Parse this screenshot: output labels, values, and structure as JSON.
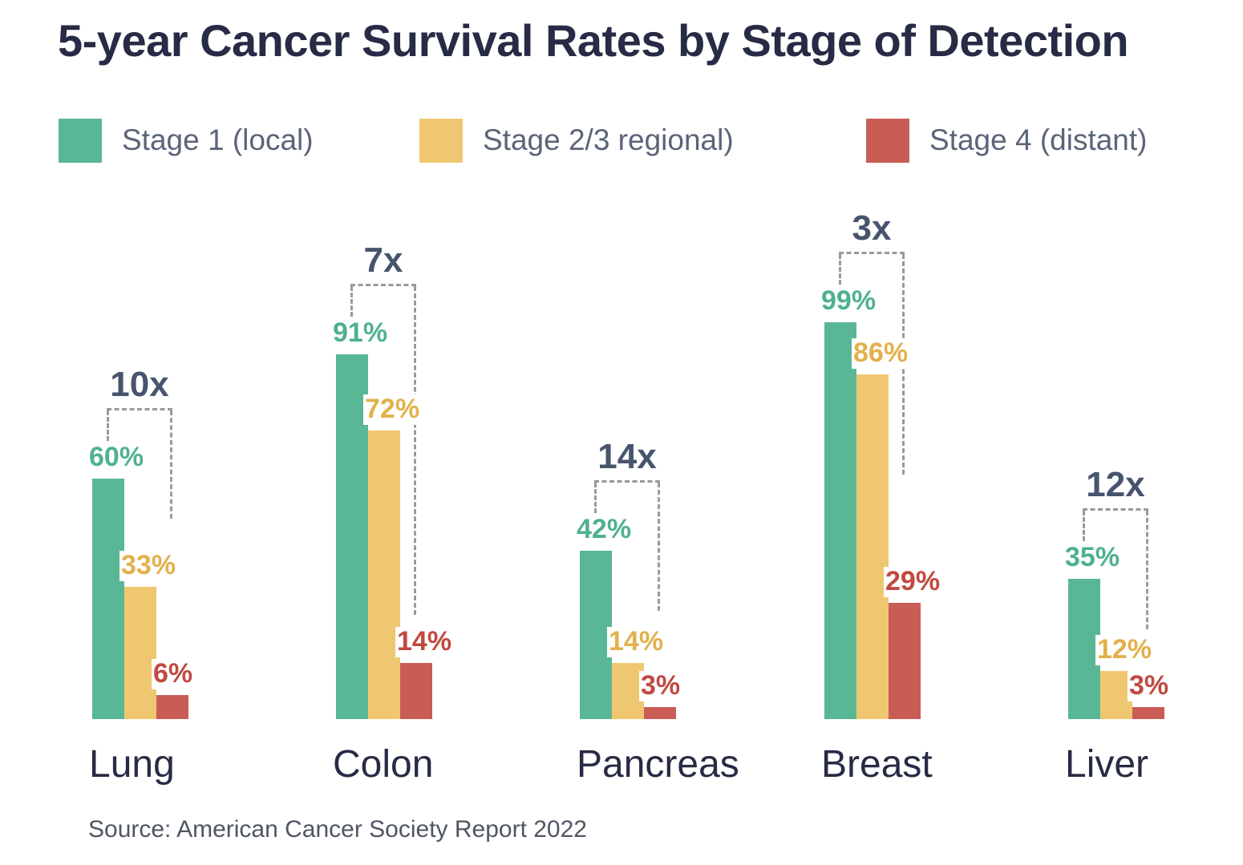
{
  "title": "5-year Cancer Survival Rates by Stage of Detection",
  "legend": [
    {
      "label": "Stage 1 (local)",
      "color": "#5AB795"
    },
    {
      "label": "Stage 2/3 regional)",
      "color": "#F0C771"
    },
    {
      "label": "Stage 4 (distant)",
      "color": "#C95D55"
    }
  ],
  "source": "Source: American Cancer Society Report 2022",
  "colors": {
    "title": "#272B45",
    "legend_text": "#5B6478",
    "source_text": "#4F5663",
    "annotation": "#48546E",
    "bracket": "#9A9A9A",
    "bars": [
      "#5AB795",
      "#F0C771",
      "#C95D55"
    ],
    "value_labels": [
      "#4FB090",
      "#E2B14C",
      "#C04940"
    ]
  },
  "chart_data": {
    "type": "bar",
    "title": "5-year Cancer Survival Rates by Stage of Detection",
    "categories": [
      "Lung",
      "Colon",
      "Pancreas",
      "Breast",
      "Liver"
    ],
    "series": [
      {
        "name": "Stage 1 (local)",
        "values": [
          60,
          91,
          42,
          99,
          35
        ]
      },
      {
        "name": "Stage 2/3 regional)",
        "values": [
          33,
          72,
          14,
          86,
          12
        ]
      },
      {
        "name": "Stage 4 (distant)",
        "values": [
          6,
          14,
          3,
          29,
          3
        ]
      }
    ],
    "value_suffix": "%",
    "annotations": [
      "10x",
      "7x",
      "14x",
      "3x",
      "12x"
    ],
    "annotation_meaning": "ratio of Stage 1 to Stage 4 survival per cancer type",
    "xlabel": "",
    "ylabel": "",
    "ylim": [
      0,
      100
    ],
    "grid": false,
    "legend_position": "top",
    "source": "Source: American Cancer Society Report 2022"
  }
}
